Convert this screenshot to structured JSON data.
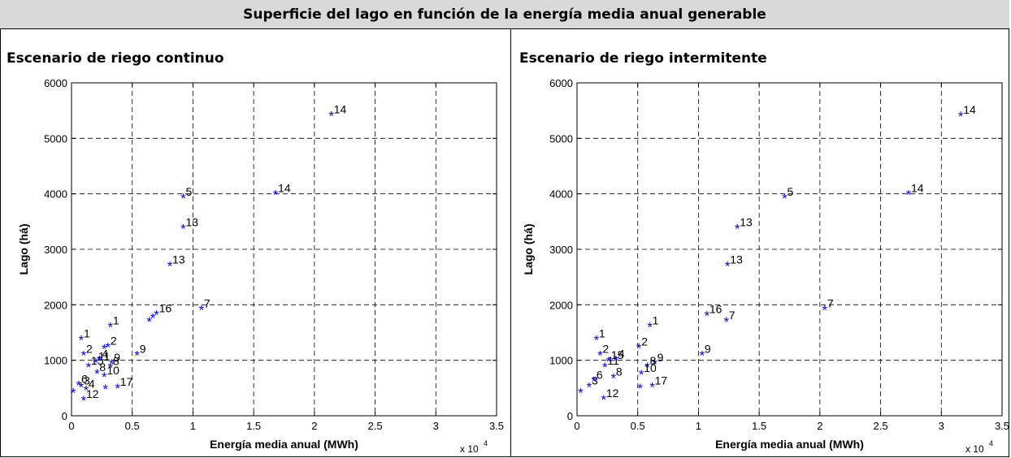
{
  "header": {
    "title": "Superficie del lago en función de la energía media anual generable"
  },
  "panels": [
    {
      "title": "Escenario de riego continuo"
    },
    {
      "title": "Escenario de riego intermitente"
    }
  ],
  "chart_data": [
    {
      "type": "scatter",
      "title": "Escenario de riego continuo",
      "xlabel": "Energía media anual (MWh)",
      "ylabel": "Lago (há)",
      "x_multiplier_label": "x 10",
      "x_multiplier_exp": "4",
      "xlim": [
        0,
        3.5
      ],
      "ylim": [
        0,
        6000
      ],
      "xticks": [
        "0",
        "0.5",
        "1",
        "1.5",
        "2",
        "2.5",
        "3",
        "3.5"
      ],
      "yticks": [
        "0",
        "1000",
        "2000",
        "3000",
        "4000",
        "5000",
        "6000"
      ],
      "grid": true,
      "marker": "*",
      "marker_color": "#0000ff",
      "points": [
        {
          "x": 0.015,
          "y": 420,
          "label": ""
        },
        {
          "x": 0.06,
          "y": 550,
          "label": "6"
        },
        {
          "x": 0.08,
          "y": 520,
          "label": "3"
        },
        {
          "x": 0.12,
          "y": 460,
          "label": "4"
        },
        {
          "x": 0.1,
          "y": 280,
          "label": "12"
        },
        {
          "x": 0.08,
          "y": 1370,
          "label": "1"
        },
        {
          "x": 0.1,
          "y": 1090,
          "label": "2"
        },
        {
          "x": 0.14,
          "y": 880,
          "label": "15"
        },
        {
          "x": 0.2,
          "y": 960,
          "label": "11"
        },
        {
          "x": 0.23,
          "y": 1000,
          "label": "4"
        },
        {
          "x": 0.21,
          "y": 760,
          "label": "8"
        },
        {
          "x": 0.27,
          "y": 1210,
          "label": ""
        },
        {
          "x": 0.32,
          "y": 1600,
          "label": "1"
        },
        {
          "x": 0.3,
          "y": 1240,
          "label": "2"
        },
        {
          "x": 0.33,
          "y": 940,
          "label": "9"
        },
        {
          "x": 0.32,
          "y": 870,
          "label": "8"
        },
        {
          "x": 0.27,
          "y": 700,
          "label": "10"
        },
        {
          "x": 0.28,
          "y": 480,
          "label": ""
        },
        {
          "x": 0.38,
          "y": 500,
          "label": "17"
        },
        {
          "x": 0.54,
          "y": 1090,
          "label": "9"
        },
        {
          "x": 0.64,
          "y": 1700,
          "label": ""
        },
        {
          "x": 0.67,
          "y": 1760,
          "label": ""
        },
        {
          "x": 0.7,
          "y": 1820,
          "label": "16"
        },
        {
          "x": 0.81,
          "y": 2700,
          "label": "13"
        },
        {
          "x": 0.92,
          "y": 3370,
          "label": "13"
        },
        {
          "x": 0.92,
          "y": 3920,
          "label": "5"
        },
        {
          "x": 1.07,
          "y": 1910,
          "label": "7"
        },
        {
          "x": 1.68,
          "y": 3990,
          "label": "14"
        },
        {
          "x": 2.14,
          "y": 5410,
          "label": "14"
        }
      ]
    },
    {
      "type": "scatter",
      "title": "Escenario de riego intermitente",
      "xlabel": "Energía media anual (MWh)",
      "ylabel": "Lago (há)",
      "x_multiplier_label": "x 10",
      "x_multiplier_exp": "4",
      "xlim": [
        0,
        3.5
      ],
      "ylim": [
        0,
        6000
      ],
      "xticks": [
        "0",
        "0.5",
        "1",
        "1.5",
        "2",
        "2.5",
        "3",
        "3.5"
      ],
      "yticks": [
        "0",
        "1000",
        "2000",
        "3000",
        "4000",
        "5000",
        "6000"
      ],
      "grid": true,
      "marker": "*",
      "marker_color": "#0000ff",
      "points": [
        {
          "x": 0.03,
          "y": 420,
          "label": ""
        },
        {
          "x": 0.1,
          "y": 520,
          "label": "3"
        },
        {
          "x": 0.14,
          "y": 620,
          "label": "6"
        },
        {
          "x": 0.22,
          "y": 290,
          "label": "12"
        },
        {
          "x": 0.16,
          "y": 1370,
          "label": "1"
        },
        {
          "x": 0.19,
          "y": 1090,
          "label": "2"
        },
        {
          "x": 0.23,
          "y": 880,
          "label": "11"
        },
        {
          "x": 0.26,
          "y": 980,
          "label": "15"
        },
        {
          "x": 0.32,
          "y": 1000,
          "label": "4"
        },
        {
          "x": 0.3,
          "y": 680,
          "label": "8"
        },
        {
          "x": 0.51,
          "y": 1220,
          "label": "2"
        },
        {
          "x": 0.6,
          "y": 1600,
          "label": "1"
        },
        {
          "x": 0.64,
          "y": 940,
          "label": "9"
        },
        {
          "x": 0.58,
          "y": 880,
          "label": "8"
        },
        {
          "x": 0.53,
          "y": 750,
          "label": "10"
        },
        {
          "x": 0.52,
          "y": 500,
          "label": ""
        },
        {
          "x": 0.62,
          "y": 520,
          "label": "17"
        },
        {
          "x": 1.03,
          "y": 1090,
          "label": "9"
        },
        {
          "x": 1.07,
          "y": 1810,
          "label": "16"
        },
        {
          "x": 1.23,
          "y": 1700,
          "label": "7"
        },
        {
          "x": 1.24,
          "y": 2700,
          "label": "13"
        },
        {
          "x": 1.32,
          "y": 3370,
          "label": "13"
        },
        {
          "x": 1.71,
          "y": 3920,
          "label": "5"
        },
        {
          "x": 2.04,
          "y": 1910,
          "label": "7"
        },
        {
          "x": 2.73,
          "y": 3990,
          "label": "14"
        },
        {
          "x": 3.16,
          "y": 5400,
          "label": "14"
        }
      ]
    }
  ]
}
